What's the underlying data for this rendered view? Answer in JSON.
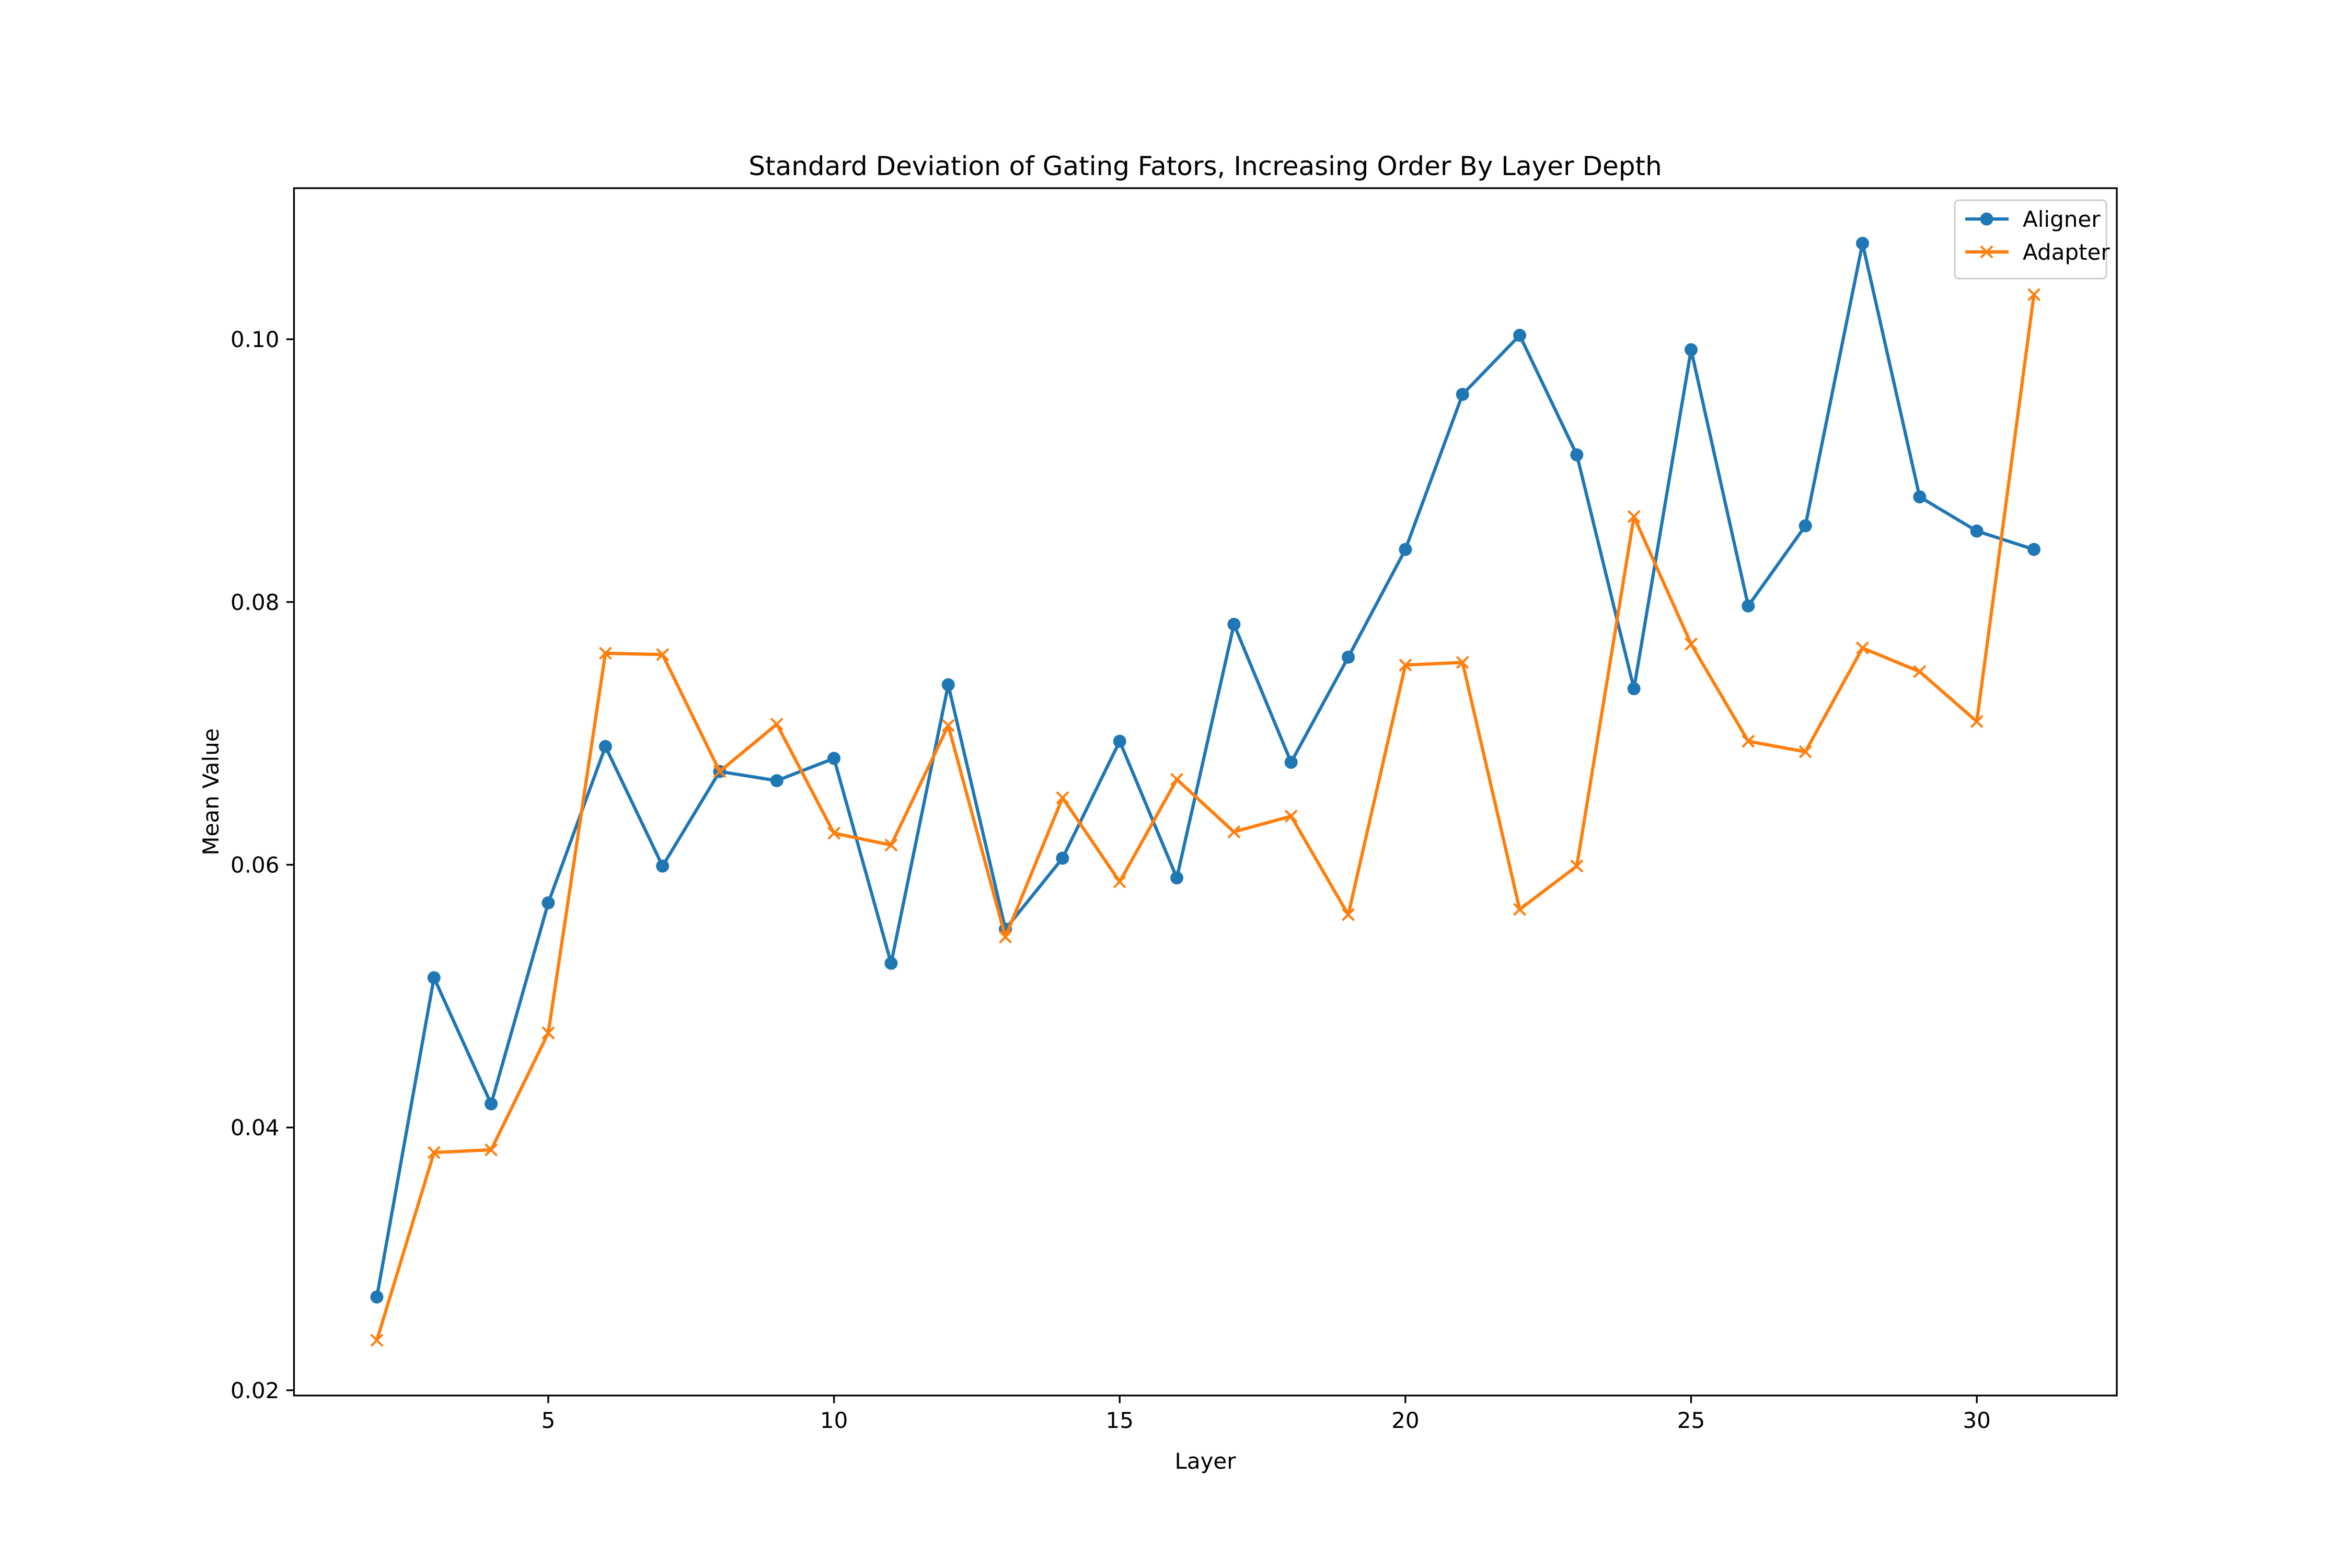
{
  "chart_data": {
    "type": "line",
    "title": "Standard Deviation of Gating Fators, Increasing Order By Layer Depth",
    "xlabel": "Layer",
    "ylabel": "Mean Value",
    "xlim": [
      0.55,
      32.45
    ],
    "ylim": [
      0.0196,
      0.1115
    ],
    "xticks": [
      5,
      10,
      15,
      20,
      25,
      30
    ],
    "xtick_labels": [
      "5",
      "10",
      "15",
      "20",
      "25",
      "30"
    ],
    "yticks": [
      0.02,
      0.04,
      0.06,
      0.08,
      0.1
    ],
    "ytick_labels": [
      "0.02",
      "0.04",
      "0.06",
      "0.08",
      "0.10"
    ],
    "grid": false,
    "legend_position": "top-right",
    "x": [
      2,
      3,
      4,
      5,
      6,
      7,
      8,
      9,
      10,
      11,
      12,
      13,
      14,
      15,
      16,
      17,
      18,
      19,
      20,
      21,
      22,
      23,
      24,
      25,
      26,
      27,
      28,
      29,
      30,
      31
    ],
    "series": [
      {
        "name": "Aligner",
        "color": "#1f77b4",
        "marker": "circle",
        "values": [
          0.0271,
          0.0514,
          0.0418,
          0.0571,
          0.069,
          0.0599,
          0.0671,
          0.0664,
          0.0681,
          0.0525,
          0.0737,
          0.0551,
          0.0605,
          0.0694,
          0.059,
          0.0783,
          0.0678,
          0.0758,
          0.084,
          0.0958,
          0.1003,
          0.0912,
          0.0734,
          0.0992,
          0.0797,
          0.0858,
          0.1073,
          0.088,
          0.0854,
          0.084
        ]
      },
      {
        "name": "Adapter",
        "color": "#ff7f0e",
        "marker": "x",
        "values": [
          0.0238,
          0.0381,
          0.0383,
          0.0472,
          0.0761,
          0.076,
          0.0671,
          0.0707,
          0.0624,
          0.0615,
          0.0706,
          0.0545,
          0.0651,
          0.0587,
          0.0665,
          0.0625,
          0.0637,
          0.0562,
          0.0752,
          0.0754,
          0.0566,
          0.0599,
          0.0865,
          0.0768,
          0.0694,
          0.0686,
          0.0765,
          0.0747,
          0.0709,
          0.1034
        ]
      }
    ]
  }
}
